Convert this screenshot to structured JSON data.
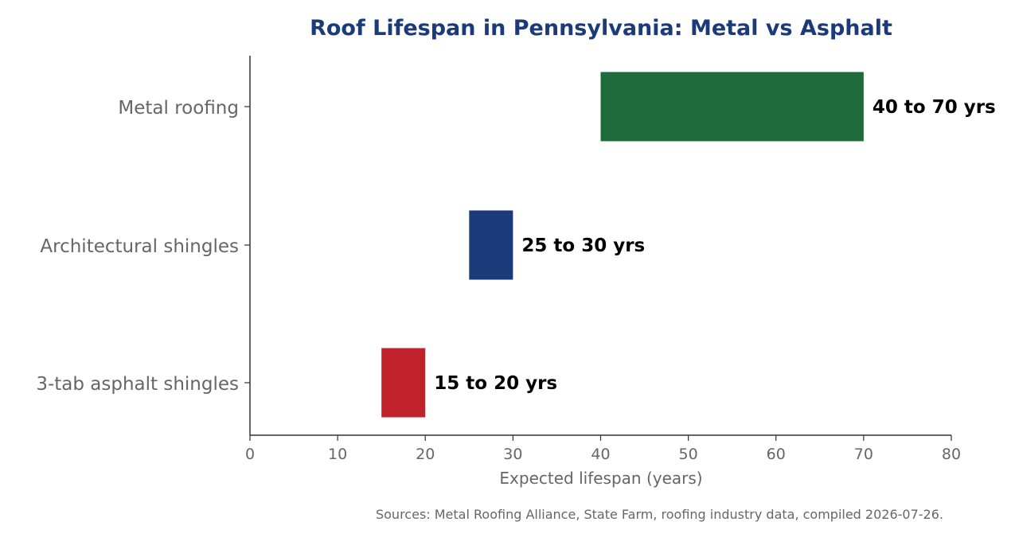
{
  "chart_data": {
    "type": "bar",
    "orientation": "horizontal",
    "title": "Roof Lifespan in Pennsylvania: Metal vs Asphalt",
    "xlabel": "Expected lifespan (years)",
    "ylabel": "",
    "xlim": [
      0,
      80
    ],
    "xticks": [
      0,
      10,
      20,
      30,
      40,
      50,
      60,
      70,
      80
    ],
    "grid": false,
    "categories": [
      "Metal roofing",
      "Architectural shingles",
      "3-tab asphalt shingles"
    ],
    "ranges": [
      {
        "category": "Metal roofing",
        "start": 40,
        "end": 70,
        "label": "40 to 70 yrs",
        "color": "#1f6b3b"
      },
      {
        "category": "Architectural shingles",
        "start": 25,
        "end": 30,
        "label": "25 to 30 yrs",
        "color": "#1b3a7a"
      },
      {
        "category": "3-tab asphalt shingles",
        "start": 15,
        "end": 20,
        "label": "15 to 20 yrs",
        "color": "#c0232c"
      }
    ],
    "source_note": "Sources: Metal Roofing Alliance, State Farm, roofing industry data, compiled 2026-07-26."
  },
  "colors": {
    "title": "#1b3a7a",
    "axis": "#333333",
    "text_muted": "#666666"
  }
}
